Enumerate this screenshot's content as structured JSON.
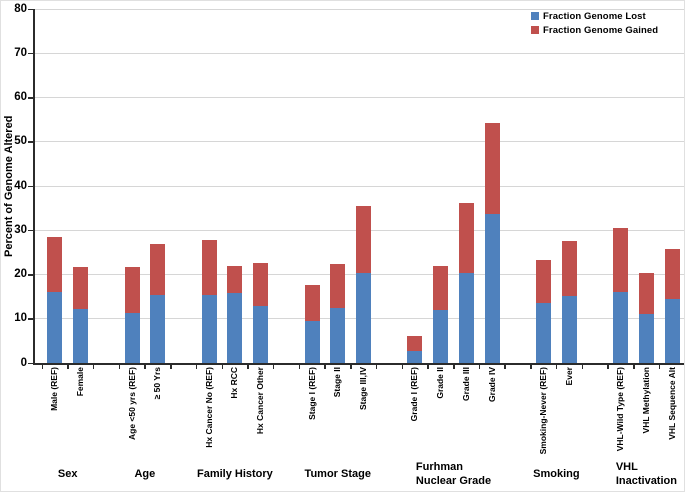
{
  "chart_data": {
    "type": "bar",
    "stacked": true,
    "title": "",
    "xlabel": "",
    "ylabel": "Percent of Genome Altered",
    "ylim": [
      0,
      80
    ],
    "yticks": [
      0,
      10,
      20,
      30,
      40,
      50,
      60,
      70,
      80
    ],
    "grid": "horizontal",
    "legend_position": "top-right",
    "series_names": [
      "Fraction Genome Lost",
      "Fraction Genome Gained"
    ],
    "series_colors": [
      "#4F81BD",
      "#C0504D"
    ],
    "axis_color": "#2b2b2b",
    "gridline_color": "#d6d6d6",
    "groups": [
      {
        "label_lines": [
          "Sex"
        ],
        "categories": [
          "Male (REF)",
          "Female"
        ],
        "lost": [
          16.0,
          12.3
        ],
        "gained": [
          12.5,
          9.4
        ]
      },
      {
        "label_lines": [
          "Age"
        ],
        "categories": [
          "Age <50 yrs (REF)",
          "≥ 50 Yrs"
        ],
        "lost": [
          11.3,
          15.4
        ],
        "gained": [
          10.4,
          11.5
        ]
      },
      {
        "label_lines": [
          "Family History"
        ],
        "categories": [
          "Hx Cancer No (REF)",
          "Hx RCC",
          "Hx Cancer Other"
        ],
        "lost": [
          15.4,
          15.8,
          12.9
        ],
        "gained": [
          12.4,
          6.1,
          9.7
        ]
      },
      {
        "label_lines": [
          "Tumor  Stage"
        ],
        "categories": [
          "Stage I (REF)",
          "Stage II",
          "Stage III,IV"
        ],
        "lost": [
          9.4,
          12.4,
          20.4
        ],
        "gained": [
          8.2,
          10.0,
          15.0
        ]
      },
      {
        "label_lines": [
          "Furhman",
          "Nuclear Grade"
        ],
        "categories": [
          "Grade I (REF)",
          "Grade II",
          "Grade III",
          "Grade IV"
        ],
        "lost": [
          2.8,
          12.0,
          20.4,
          33.7
        ],
        "gained": [
          3.2,
          9.9,
          15.8,
          20.6
        ]
      },
      {
        "label_lines": [
          "Smoking"
        ],
        "categories": [
          "Smoking-Never (REF)",
          "Ever"
        ],
        "lost": [
          13.6,
          15.2
        ],
        "gained": [
          9.7,
          12.4
        ]
      },
      {
        "label_lines": [
          "VHL",
          "Inactivation"
        ],
        "categories": [
          "VHL-Wild Type (REF)",
          "VHL Methylation",
          "VHL Sequence Alt"
        ],
        "lost": [
          16.1,
          11.1,
          14.5
        ],
        "gained": [
          14.4,
          9.3,
          11.3
        ]
      }
    ]
  }
}
